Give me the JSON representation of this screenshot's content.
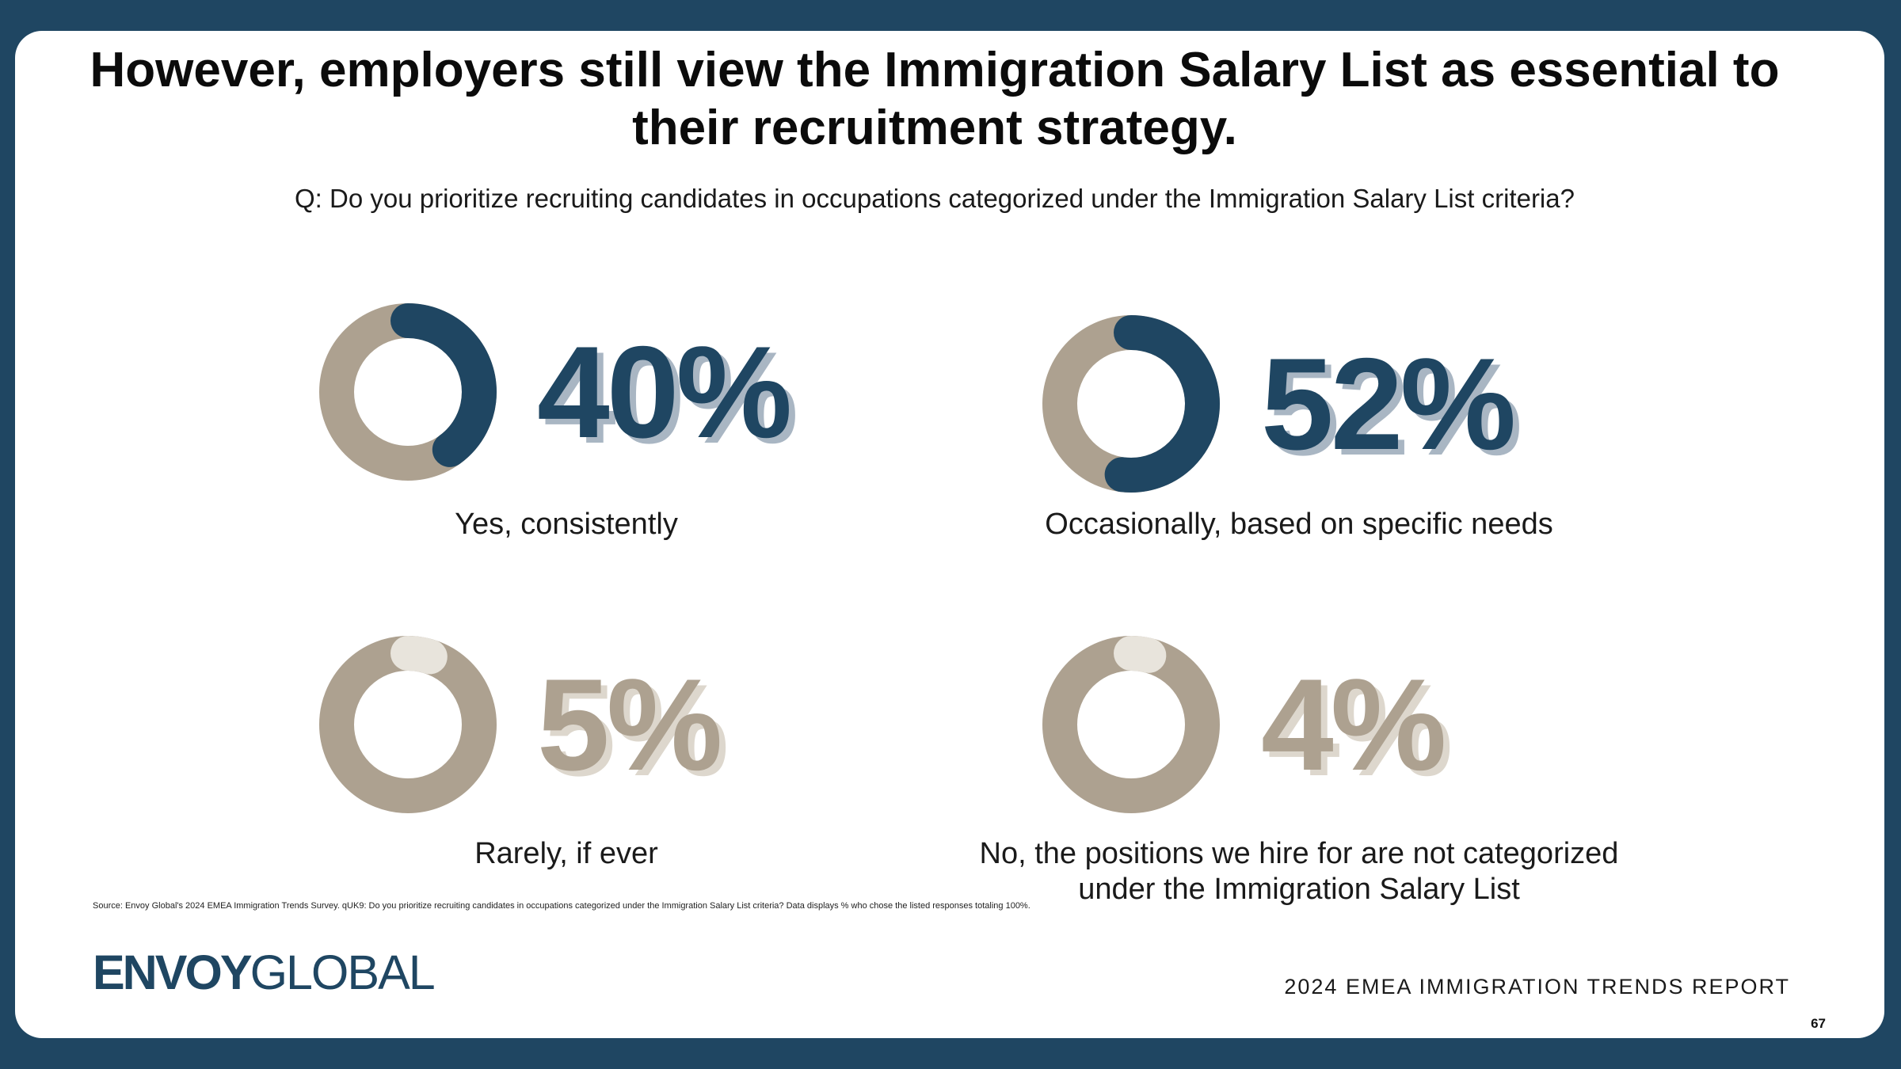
{
  "title": "However, employers still view the Immigration Salary List as essential to their recruitment strategy.",
  "question": "Q: Do you prioritize recruiting candidates in occupations categorized under the Immigration Salary List criteria?",
  "chart_data": [
    {
      "type": "pie",
      "value": 40,
      "value_label": "40%",
      "label": "Yes, consistently"
    },
    {
      "type": "pie",
      "value": 52,
      "value_label": "52%",
      "label": "Occasionally, based on specific needs"
    },
    {
      "type": "pie",
      "value": 5,
      "value_label": "5%",
      "label": "Rarely, if ever"
    },
    {
      "type": "pie",
      "value": 4,
      "value_label": "4%",
      "label": "No, the positions we hire for are not categorized under the Immigration Salary List"
    }
  ],
  "colors": {
    "dark_blue": "#1f4662",
    "tan": "#ada190",
    "small_highlight": "#e8e4dc"
  },
  "source": "Source: Envoy Global's 2024 EMEA Immigration Trends Survey. qUK9: Do you prioritize recruiting candidates in occupations categorized under the Immigration Salary List criteria? Data displays % who chose the listed responses totaling 100%.",
  "logo": {
    "bold": "ENVOY",
    "light": "GLOBAL"
  },
  "report_title": "2024 EMEA IMMIGRATION TRENDS REPORT",
  "page_number": "67"
}
